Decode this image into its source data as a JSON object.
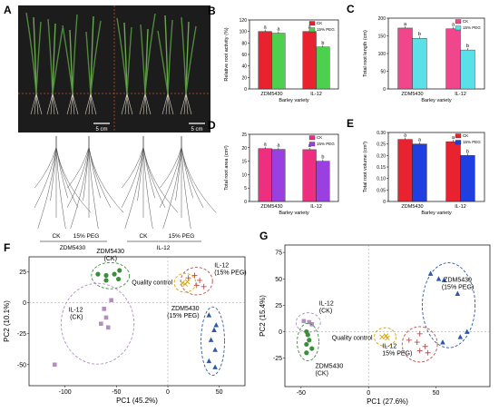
{
  "panels": {
    "A": {
      "letter": "A",
      "scale_bar_left": "5 cm",
      "scale_bar_right": "5 cm",
      "group_left": "ZDM5430",
      "group_right": "IL-12",
      "conditions": [
        "CK",
        "15% PEG",
        "CK",
        "15% PEG"
      ]
    }
  },
  "chart_data": [
    {
      "id": "B",
      "letter": "B",
      "type": "bar",
      "categories": [
        "ZDM5430",
        "IL-12"
      ],
      "xlabel": "Barley variety",
      "ylabel": "Relative root activity (%)",
      "ylim": [
        0,
        120
      ],
      "yticks": [
        0,
        20,
        40,
        60,
        80,
        100,
        120
      ],
      "series": [
        {
          "name": "CK",
          "color": "#e8222e",
          "values": [
            100,
            100
          ],
          "labels": [
            "a",
            "a"
          ]
        },
        {
          "name": "15% PEG",
          "color": "#4dd04d",
          "values": [
            97,
            73
          ],
          "labels": [
            "a",
            "b"
          ]
        }
      ],
      "legend": "top-right"
    },
    {
      "id": "C",
      "letter": "C",
      "type": "bar",
      "categories": [
        "ZDM5430",
        "IL-12"
      ],
      "xlabel": "Barley variety",
      "ylabel": "Total root length (cm)",
      "ylim": [
        0,
        200
      ],
      "yticks": [
        0,
        50,
        100,
        150,
        200
      ],
      "series": [
        {
          "name": "CK",
          "color": "#f0478c",
          "values": [
            172,
            170
          ],
          "labels": [
            "a",
            "a"
          ]
        },
        {
          "name": "15% PEG",
          "color": "#5ae0e8",
          "values": [
            143,
            110
          ],
          "labels": [
            "b",
            "b"
          ]
        }
      ],
      "legend": "top-right"
    },
    {
      "id": "D",
      "letter": "D",
      "type": "bar",
      "categories": [
        "ZDM5430",
        "IL-12"
      ],
      "xlabel": "Barley variety",
      "ylabel": "Total root area (cm²)",
      "ylim": [
        0,
        25
      ],
      "yticks": [
        0,
        5,
        10,
        15,
        20,
        25
      ],
      "series": [
        {
          "name": "CK",
          "color": "#ee2f7f",
          "values": [
            19.7,
            19.3
          ],
          "labels": [
            "a",
            "a"
          ]
        },
        {
          "name": "15% PEG",
          "color": "#9a3fe0",
          "values": [
            19.4,
            15.0
          ],
          "labels": [
            "a",
            "b"
          ]
        }
      ],
      "legend": "top-right"
    },
    {
      "id": "E",
      "letter": "E",
      "type": "bar",
      "categories": [
        "ZDM5430",
        "IL-12"
      ],
      "xlabel": "Barley variety",
      "ylabel": "Total root volume (cm³)",
      "ylim": [
        0,
        0.3
      ],
      "yticks": [
        0,
        0.05,
        0.1,
        0.15,
        0.2,
        0.25,
        0.3
      ],
      "series": [
        {
          "name": "CK",
          "color": "#e8222e",
          "values": [
            0.27,
            0.26
          ],
          "labels": [
            "a",
            "a"
          ]
        },
        {
          "name": "15% PEG",
          "color": "#1f3fe0",
          "values": [
            0.25,
            0.2
          ],
          "labels": [
            "a",
            "b"
          ]
        }
      ],
      "legend": "top-right"
    },
    {
      "id": "F",
      "letter": "F",
      "type": "scatter",
      "xlabel": "PC1 (45.2%)",
      "ylabel": "PC2 (10.1%)",
      "xlim": [
        -135,
        75
      ],
      "ylim": [
        -67,
        37
      ],
      "xticks": [
        -100,
        -50,
        0,
        50
      ],
      "yticks": [
        -50,
        -25,
        0,
        25
      ],
      "groups": [
        {
          "name": "ZDM5430 (CK)",
          "label_lines": [
            "ZDM5430",
            "(CK)"
          ],
          "marker": "circle",
          "color": "#3a8f3a",
          "points": [
            [
              -68,
              23
            ],
            [
              -60,
              22
            ],
            [
              -52,
              23
            ],
            [
              -60,
              18
            ],
            [
              -47,
              26
            ],
            [
              -48,
              19
            ]
          ]
        },
        {
          "name": "IL-12 (15% PEG)",
          "label_lines": [
            "IL-12",
            "(15% PEG)"
          ],
          "marker": "plus",
          "color": "#b05050",
          "points": [
            [
              20,
              20
            ],
            [
              26,
              22
            ],
            [
              31,
              18
            ],
            [
              35,
              13
            ],
            [
              28,
              14
            ]
          ]
        },
        {
          "name": "Quality control",
          "label_lines": [
            "Quality control"
          ],
          "marker": "x",
          "color": "#d7a400",
          "points": [
            [
              14,
              16
            ],
            [
              17,
              15
            ],
            [
              19,
              17
            ]
          ]
        },
        {
          "name": "ZDM5430 (15% PEG)",
          "label_lines": [
            "ZDM5430",
            "(15% PEG)"
          ],
          "marker": "triangle",
          "color": "#2d5aa8",
          "points": [
            [
              40,
              -10
            ],
            [
              45,
              -22
            ],
            [
              42,
              -30
            ],
            [
              46,
              -38
            ],
            [
              40,
              -47
            ],
            [
              46,
              -52
            ],
            [
              47,
              -18
            ]
          ]
        },
        {
          "name": "IL-12 (CK)",
          "label_lines": [
            "IL-12",
            "(CK)"
          ],
          "marker": "square",
          "color": "#b28fbf",
          "points": [
            [
              -110,
              -50
            ],
            [
              -65,
              -17
            ],
            [
              -58,
              -20
            ],
            [
              -55,
              2
            ],
            [
              -60,
              -12
            ],
            [
              -62,
              -5
            ]
          ]
        }
      ]
    },
    {
      "id": "G",
      "letter": "G",
      "type": "scatter",
      "xlabel": "PC1 (27.6%)",
      "ylabel": "PC2 (15.4%)",
      "xlim": [
        -62,
        90
      ],
      "ylim": [
        -52,
        82
      ],
      "xticks": [
        -50,
        0,
        50
      ],
      "yticks": [
        -25,
        0,
        25,
        50,
        75
      ],
      "groups": [
        {
          "name": "ZDM5430 (15% PEG)",
          "label_lines": [
            "ZDM5430",
            "(15% PEG)"
          ],
          "marker": "triangle",
          "color": "#2d5aa8",
          "points": [
            [
              46,
              55
            ],
            [
              52,
              50
            ],
            [
              56,
              49
            ],
            [
              66,
              36
            ],
            [
              73,
              0
            ],
            [
              55,
              -10
            ],
            [
              68,
              -5
            ]
          ]
        },
        {
          "name": "IL-12 (CK)",
          "label_lines": [
            "IL-12",
            "(CK)"
          ],
          "marker": "square",
          "color": "#b28fbf",
          "points": [
            [
              -48,
              10
            ],
            [
              -44,
              9
            ],
            [
              -42,
              7
            ]
          ]
        },
        {
          "name": "ZDM5430 (CK)",
          "label_lines": [
            "ZDM5430",
            "(CK)"
          ],
          "marker": "circle",
          "color": "#3a8f3a",
          "points": [
            [
              -46,
              0
            ],
            [
              -45,
              -3
            ],
            [
              -44,
              -8
            ],
            [
              -46,
              -12
            ],
            [
              -42,
              -16
            ],
            [
              -46,
              -20
            ]
          ]
        },
        {
          "name": "Quality control",
          "label_lines": [
            "Quality control"
          ],
          "marker": "x",
          "color": "#d7a400",
          "points": [
            [
              10,
              -5
            ],
            [
              13,
              -4
            ],
            [
              14,
              -6
            ]
          ]
        },
        {
          "name": "IL-12 (15% PEG)",
          "label_lines": [
            "IL-12",
            "15% PEG)"
          ],
          "marker": "plus",
          "color": "#b05050",
          "points": [
            [
              38,
              -2
            ],
            [
              30,
              -8
            ],
            [
              36,
              -10
            ],
            [
              42,
              -14
            ],
            [
              38,
              -18
            ],
            [
              44,
              -20
            ]
          ]
        }
      ]
    }
  ]
}
